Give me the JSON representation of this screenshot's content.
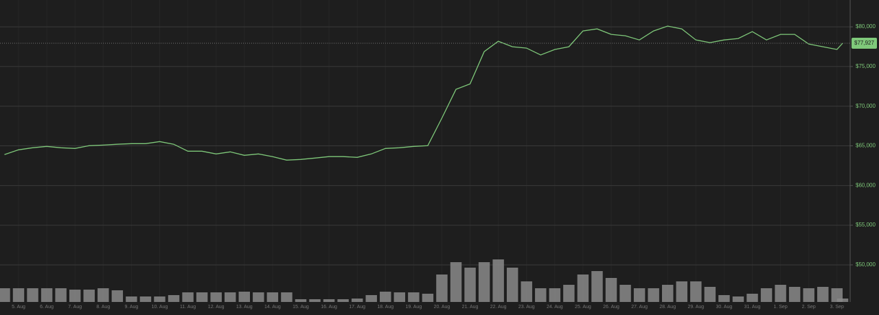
{
  "chart_data": {
    "type": "line",
    "x": [
      -0.5,
      0,
      0.5,
      1,
      1.5,
      2,
      2.5,
      3,
      3.5,
      4,
      4.5,
      5,
      5.5,
      6,
      6.5,
      7,
      7.5,
      8,
      8.5,
      9,
      9.5,
      10,
      10.5,
      11,
      11.5,
      12,
      12.5,
      13,
      13.5,
      14,
      14.5,
      15,
      15.5,
      16,
      16.5,
      17,
      17.5,
      18,
      18.5,
      19,
      19.5,
      20,
      20.5,
      21,
      21.5,
      22,
      22.5,
      23,
      23.5,
      24,
      24.5,
      25,
      25.5,
      26,
      26.5,
      27,
      27.5,
      28,
      28.5,
      29,
      29.2
    ],
    "series": [
      {
        "color": "#7fc97a",
        "values": [
          63900,
          64500,
          64760,
          64930,
          64760,
          64670,
          65020,
          65100,
          65200,
          65280,
          65280,
          65540,
          65200,
          64330,
          64330,
          63980,
          64240,
          63810,
          63980,
          63640,
          63200,
          63290,
          63460,
          63640,
          63640,
          63550,
          63980,
          64670,
          64760,
          64930,
          65020,
          68500,
          72120,
          72810,
          76880,
          78180,
          77490,
          77320,
          76450,
          77140,
          77490,
          79480,
          79740,
          79050,
          78870,
          78350,
          79480,
          80090,
          79740,
          78350,
          78010,
          78350,
          78530,
          79390,
          78350,
          79050,
          79050,
          77840,
          77490,
          77140,
          77927
        ]
      },
      {
        "color": "#8a8a8a",
        "axis": "y2",
        "values": [
          20,
          20,
          20,
          20,
          20,
          18,
          18,
          20,
          17,
          8,
          8,
          8,
          10,
          14,
          14,
          14,
          14,
          15,
          14,
          14,
          14,
          4,
          4,
          4,
          4,
          5,
          10,
          15,
          14,
          14,
          12,
          40,
          58,
          50,
          58,
          62,
          50,
          30,
          20,
          20,
          25,
          40,
          45,
          35,
          25,
          20,
          20,
          25,
          30,
          30,
          22,
          10,
          8,
          12,
          20,
          25,
          22,
          20,
          22,
          20,
          5
        ]
      }
    ],
    "xlim": [
      -0.657,
      29.467
    ],
    "xticks": [
      {
        "value": 0,
        "label": "5. Aug"
      },
      {
        "value": 1,
        "label": "6. Aug"
      },
      {
        "value": 2,
        "label": "7. Aug"
      },
      {
        "value": 3,
        "label": "8. Aug"
      },
      {
        "value": 4,
        "label": "9. Aug"
      },
      {
        "value": 5,
        "label": "10. Aug"
      },
      {
        "value": 6,
        "label": "11. Aug"
      },
      {
        "value": 7,
        "label": "12. Aug"
      },
      {
        "value": 8,
        "label": "13. Aug"
      },
      {
        "value": 9,
        "label": "14. Aug"
      },
      {
        "value": 10,
        "label": "15. Aug"
      },
      {
        "value": 11,
        "label": "16. Aug"
      },
      {
        "value": 12,
        "label": "17. Aug"
      },
      {
        "value": 13,
        "label": "18. Aug"
      },
      {
        "value": 14,
        "label": "19. Aug"
      },
      {
        "value": 15,
        "label": "20. Aug"
      },
      {
        "value": 16,
        "label": "21. Aug"
      },
      {
        "value": 17,
        "label": "22. Aug"
      },
      {
        "value": 18,
        "label": "23. Aug"
      },
      {
        "value": 19,
        "label": "24. Aug"
      },
      {
        "value": 20,
        "label": "25. Aug"
      },
      {
        "value": 21,
        "label": "26. Aug"
      },
      {
        "value": 22,
        "label": "27. Aug"
      },
      {
        "value": 23,
        "label": "28. Aug"
      },
      {
        "value": 24,
        "label": "29. Aug"
      },
      {
        "value": 25,
        "label": "30. Aug"
      },
      {
        "value": 26,
        "label": "31. Aug"
      },
      {
        "value": 27,
        "label": "1. Sep"
      },
      {
        "value": 28,
        "label": "2. Sep"
      },
      {
        "value": 29,
        "label": "3. Sep"
      }
    ],
    "ylim": [
      45325,
      83380
    ],
    "yticks": [
      {
        "value": 50000,
        "label": "$50,000"
      },
      {
        "value": 55000,
        "label": "$55,000"
      },
      {
        "value": 60000,
        "label": "$60,000"
      },
      {
        "value": 65000,
        "label": "$65,000"
      },
      {
        "value": 70000,
        "label": "$70,000"
      },
      {
        "value": 75000,
        "label": "$75,000"
      },
      {
        "value": 80000,
        "label": "$80,000"
      }
    ],
    "y2lim": [
      0,
      80
    ],
    "grid": true,
    "current_price": 77927,
    "current_price_label": "$77,927"
  }
}
